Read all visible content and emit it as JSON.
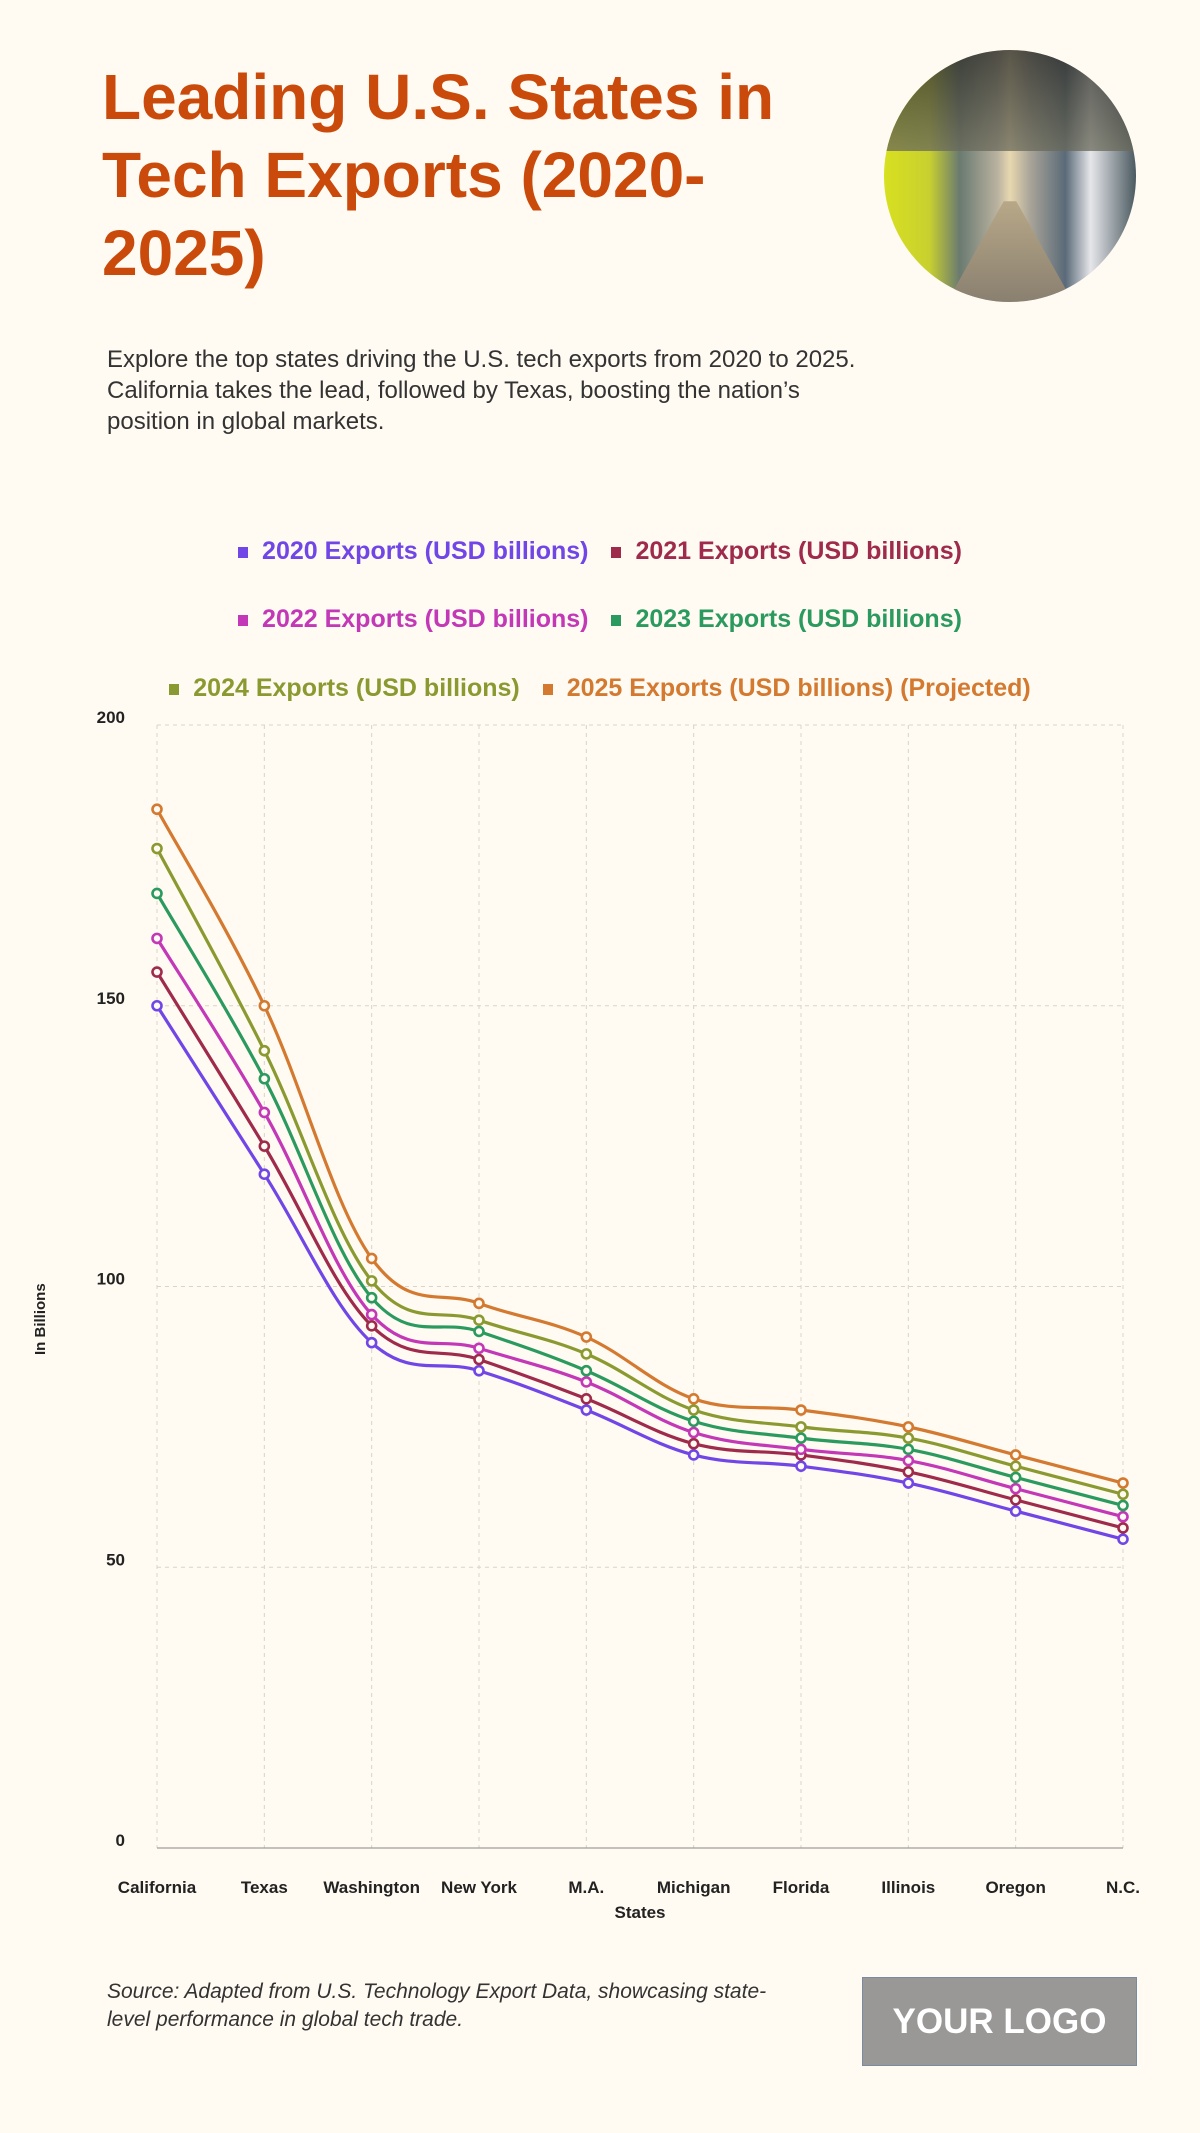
{
  "header": {
    "title": "Leading U.S. States in Tech Exports (2020-2025)",
    "description": "Explore the top states driving the U.S. tech exports from 2020 to 2025. California takes the lead, followed by Texas, boosting the nation’s position in global markets."
  },
  "footer": {
    "source": "Source: Adapted from U.S. Technology Export Data, showcasing state-level performance in global tech trade.",
    "logo": "YOUR LOGO"
  },
  "chart_data": {
    "type": "line",
    "xlabel": "States",
    "ylabel": "In Billions",
    "ylim": [
      0,
      200
    ],
    "yticks": [
      0,
      50,
      100,
      150,
      200
    ],
    "grid": true,
    "legend_position": "top",
    "categories": [
      "California",
      "Texas",
      "Washington",
      "New York",
      "M.A.",
      "Michigan",
      "Florida",
      "Illinois",
      "Oregon",
      "N.C."
    ],
    "series": [
      {
        "name": "2020 Exports (USD billions)",
        "color": "#7046e6",
        "values": [
          150,
          120,
          90,
          85,
          78,
          70,
          68,
          65,
          60,
          55
        ]
      },
      {
        "name": "2021 Exports (USD billions)",
        "color": "#9e2a4c",
        "values": [
          156,
          125,
          93,
          87,
          80,
          72,
          70,
          67,
          62,
          57
        ]
      },
      {
        "name": "2022 Exports (USD billions)",
        "color": "#c238b6",
        "values": [
          162,
          131,
          95,
          89,
          83,
          74,
          71,
          69,
          64,
          59
        ]
      },
      {
        "name": "2023 Exports (USD billions)",
        "color": "#2b9a5e",
        "values": [
          170,
          137,
          98,
          92,
          85,
          76,
          73,
          71,
          66,
          61
        ]
      },
      {
        "name": "2024 Exports (USD billions)",
        "color": "#8a9a30",
        "values": [
          178,
          142,
          101,
          94,
          88,
          78,
          75,
          73,
          68,
          63
        ]
      },
      {
        "name": "2025 Exports (USD billions) (Projected)",
        "color": "#d37a30",
        "values": [
          185,
          150,
          105,
          97,
          91,
          80,
          78,
          75,
          70,
          65
        ]
      }
    ]
  }
}
